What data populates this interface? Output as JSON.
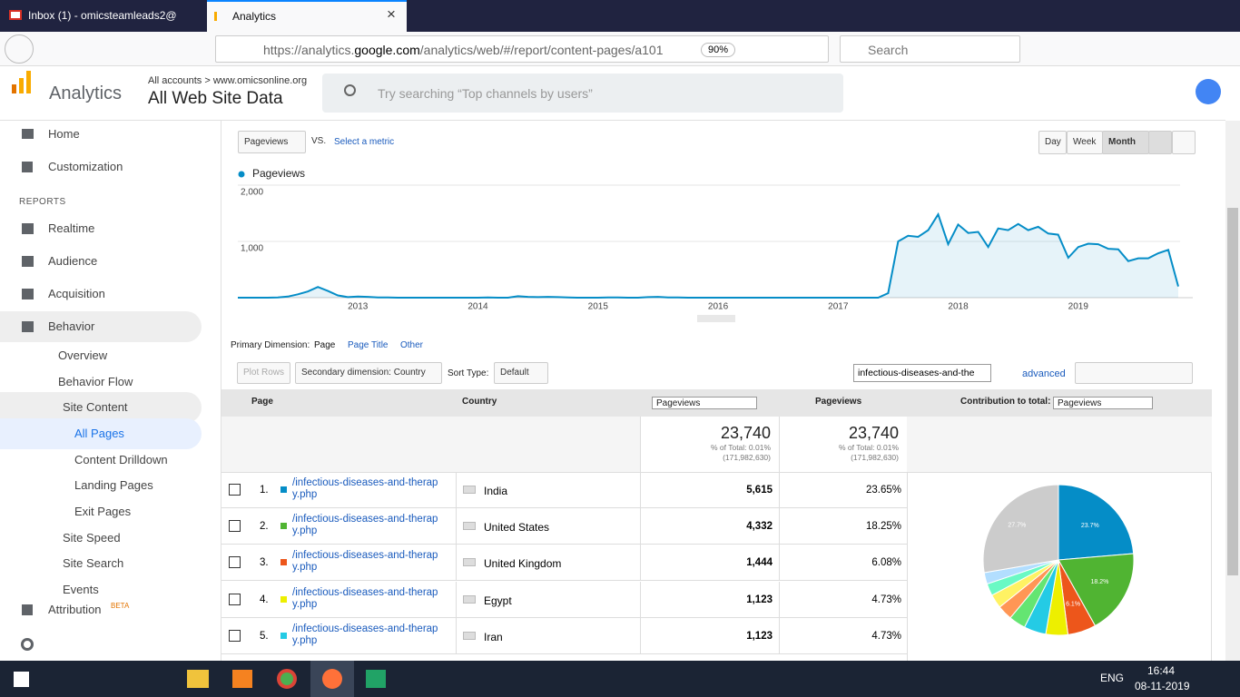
{
  "browser": {
    "tabs": [
      "Inbox (1) - omicsteamleads2@",
      "Analytics"
    ],
    "url_prefix": "https://analytics.",
    "url_domain": "google.com",
    "url_path": "/analytics/web/#/report/content-pages/a101",
    "zoom": "90%",
    "search": "Search"
  },
  "header": {
    "app": "Analytics",
    "breadcrumb": "All accounts > www.omicsonline.org",
    "view": "All Web Site Data",
    "search": "Try searching “Top channels by users”"
  },
  "sidebar": {
    "nav": [
      "Home",
      "Customization"
    ],
    "reports_label": "REPORTS",
    "reports": [
      "Realtime",
      "Audience",
      "Acquisition",
      "Behavior"
    ],
    "behavior": [
      "Overview",
      "Behavior Flow",
      "Site Content"
    ],
    "site_content": [
      "All Pages",
      "Content Drilldown",
      "Landing Pages",
      "Exit Pages"
    ],
    "behavior_more": [
      "Site Speed",
      "Site Search",
      "Events"
    ],
    "attribution": "Attribution",
    "beta": "BETA"
  },
  "report": {
    "metric": "Pageviews",
    "vs": "VS.",
    "select_metric": "Select a metric",
    "periods": [
      "Day",
      "Week",
      "Month"
    ],
    "primary_dimension_label": "Primary Dimension:",
    "dimensions": [
      "Page",
      "Page Title",
      "Other"
    ],
    "plot_rows": "Plot Rows",
    "secondary": "Secondary dimension: Country",
    "sort_label": "Sort Type:",
    "sort": "Default",
    "filter": "infectious-diseases-and-the",
    "advanced": "advanced"
  },
  "table": {
    "header": [
      "Page",
      "Country",
      "Pageviews",
      "Pageviews",
      "Contribution to total:",
      "Pageviews"
    ],
    "totals": [
      [
        "23,740",
        "% of Total: 0.01%",
        "(171,982,630)"
      ],
      [
        "23,740",
        "% of Total: 0.01%",
        "(171,982,630)"
      ]
    ],
    "rows": [
      [
        "1.",
        "/infectious-diseases-and-therapy.php",
        "India",
        "5,615",
        "23.65%"
      ],
      [
        "2.",
        "/infectious-diseases-and-therapy.php",
        "United States",
        "4,332",
        "18.25%"
      ],
      [
        "3.",
        "/infectious-diseases-and-therapy.php",
        "United Kingdom",
        "1,444",
        "6.08%"
      ],
      [
        "4.",
        "/infectious-diseases-and-therapy.php",
        "Egypt",
        "1,123",
        "4.73%"
      ],
      [
        "5.",
        "/infectious-diseases-and-therapy.php",
        "Iran",
        "1,123",
        "4.73%"
      ]
    ]
  },
  "chart_data": [
    {
      "type": "line",
      "categories": [
        null,
        null,
        null,
        null,
        null,
        null,
        null,
        null,
        null,
        null,
        null,
        null,
        "2013",
        null,
        null,
        null,
        null,
        null,
        null,
        null,
        null,
        null,
        null,
        null,
        "2014",
        null,
        null,
        null,
        null,
        null,
        null,
        null,
        null,
        null,
        null,
        null,
        "2015",
        null,
        null,
        null,
        null,
        null,
        null,
        null,
        null,
        null,
        null,
        null,
        "2016",
        null,
        null,
        null,
        null,
        null,
        null,
        null,
        null,
        null,
        null,
        null,
        "2017",
        null,
        null,
        null,
        null,
        null,
        null,
        null,
        null,
        null,
        null,
        null,
        "2018",
        null,
        null,
        null,
        null,
        null,
        null,
        null,
        null,
        null,
        null,
        null,
        "2019",
        null,
        null,
        null,
        null,
        null,
        null,
        null,
        null,
        null,
        null
      ],
      "series": [
        {
          "name": "Pageviews",
          "color": "#058dc7",
          "values": [
            0,
            0,
            0,
            0,
            5,
            20,
            60,
            110,
            190,
            120,
            40,
            10,
            20,
            15,
            5,
            5,
            0,
            0,
            0,
            0,
            0,
            0,
            0,
            0,
            0,
            5,
            0,
            0,
            25,
            15,
            10,
            15,
            10,
            5,
            0,
            0,
            0,
            5,
            5,
            0,
            0,
            10,
            15,
            5,
            5,
            0,
            0,
            0,
            0,
            0,
            0,
            0,
            0,
            0,
            0,
            0,
            0,
            0,
            0,
            0,
            0,
            0,
            0,
            0,
            0,
            80,
            1000,
            1100,
            1080,
            1200,
            1480,
            950,
            1300,
            1150,
            1170,
            900,
            1230,
            1200,
            1310,
            1200,
            1260,
            1140,
            1120,
            710,
            900,
            960,
            950,
            870,
            860,
            650,
            700,
            700,
            790,
            850,
            200
          ]
        }
      ],
      "ylim": [
        0,
        2000
      ],
      "yticks": [
        {
          "value": 1000,
          "label": "1,000"
        },
        {
          "value": 2000,
          "label": "2,000"
        }
      ],
      "grid": true
    },
    {
      "type": "pie",
      "values": [
        23.652,
        18.248,
        6.083,
        4.73,
        4.73,
        3.6,
        3.2,
        3.0,
        2.6,
        2.46,
        27.7
      ],
      "value_labels": [
        "23.7%",
        "18.2%",
        "6.1%",
        null,
        null,
        null,
        null,
        null,
        null,
        null,
        "27.7%"
      ],
      "colors": [
        "#058dc7",
        "#50b432",
        "#ed561b",
        "#edef00",
        "#24cbe5",
        "#64e572",
        "#ff9655",
        "#fff263",
        "#6af9c4",
        "#b2deff",
        "#cccccc"
      ]
    }
  ],
  "taskbar": {
    "lang": "ENG",
    "time": "16:44",
    "date": "08-11-2019"
  }
}
